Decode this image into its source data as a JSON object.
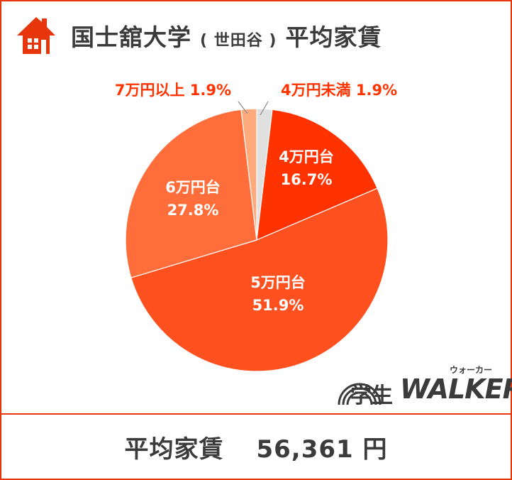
{
  "header": {
    "title_main": "国士舘大学",
    "title_campus": "( 世田谷 )",
    "title_suffix": "平均家賃"
  },
  "chart_data": {
    "type": "pie",
    "title": "国士舘大学 ( 世田谷 ) 平均家賃",
    "slices": [
      {
        "name": "4万円未満",
        "value": 1.9,
        "label": "1.9%",
        "color": "#e0e0e0"
      },
      {
        "name": "4万円台",
        "value": 16.7,
        "label": "16.7%",
        "color": "#ff3300"
      },
      {
        "name": "5万円台",
        "value": 51.9,
        "label": "51.9%",
        "color": "#ff5020"
      },
      {
        "name": "6万円台",
        "value": 27.8,
        "label": "27.8%",
        "color": "#ff6e3a"
      },
      {
        "name": "7万円以上",
        "value": 1.9,
        "label": "1.9%",
        "color": "#ffaa7d"
      }
    ],
    "label_color_inside": "#ffffff",
    "label_color_outside": "#ff3300",
    "start": "12 o'clock",
    "direction": "clockwise"
  },
  "logo": {
    "kanji": "学生",
    "name": "WALKER",
    "kana": "ウォーカー"
  },
  "footer": {
    "label": "平均家賃",
    "amount": "56,361 円"
  },
  "colors": {
    "accent": "#e8360c",
    "text": "#3b3b3b"
  }
}
